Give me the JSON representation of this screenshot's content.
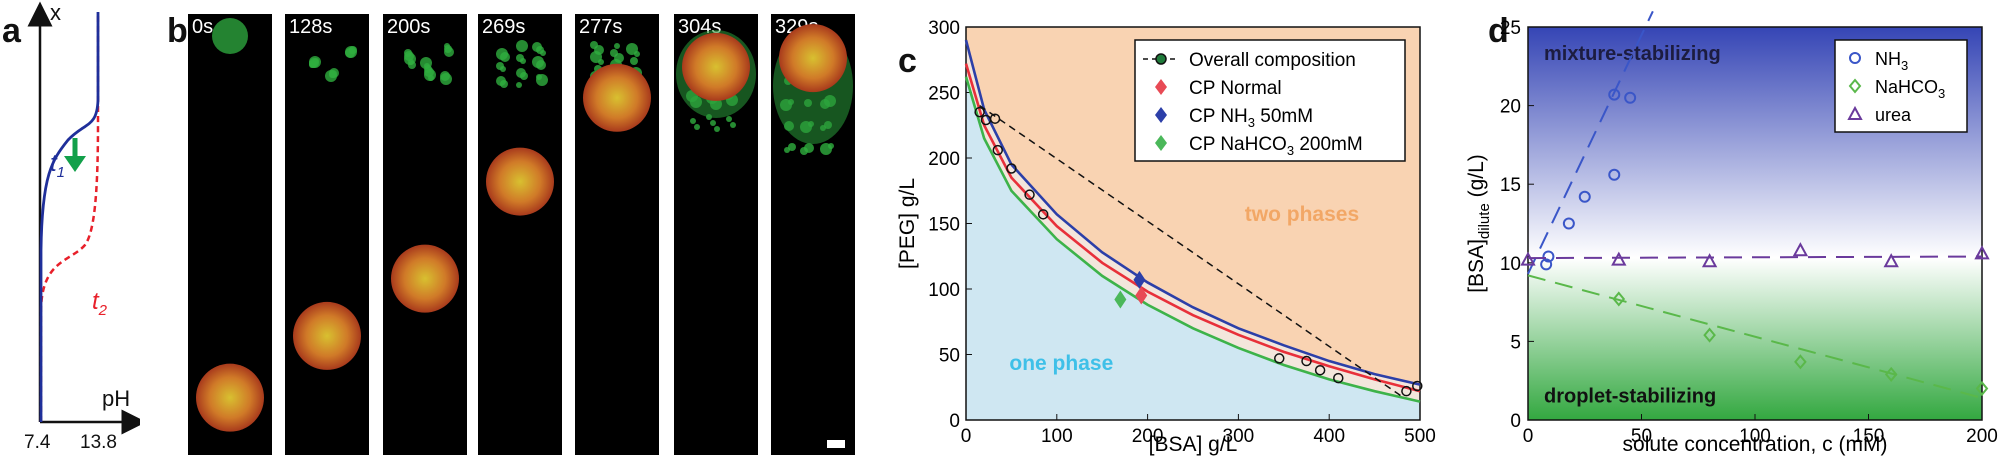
{
  "panels": {
    "a": "a",
    "b": "b",
    "c": "c",
    "d": "d"
  },
  "panel_a": {
    "y_axis_label": "x",
    "x_axis_label": "pH",
    "tick_left": "7.4",
    "tick_right": "13.8",
    "curve_labels": [
      "t",
      "t"
    ],
    "curve_subscripts": [
      "1",
      "2"
    ],
    "colors": {
      "t1": "#1f2f9a",
      "t2": "#e8202a",
      "arrow": "#12a04a"
    }
  },
  "panel_b": {
    "times": [
      "0s",
      "128s",
      "200s",
      "269s",
      "277s",
      "304s",
      "329s"
    ],
    "droplet_height_fraction": [
      0.87,
      0.73,
      0.6,
      0.38,
      0.19,
      0.12,
      0.1
    ]
  },
  "panel_c": {
    "chart_data": {
      "type": "line",
      "xlabel": "[BSA] g/L",
      "ylabel": "[PEG] g/L",
      "xlim": [
        0,
        500
      ],
      "ylim": [
        0,
        300
      ],
      "xticks": [
        0,
        100,
        200,
        300,
        400,
        500
      ],
      "yticks": [
        0,
        50,
        100,
        150,
        200,
        250,
        300
      ],
      "region_labels": {
        "upper": "two phases",
        "lower": "one phase"
      },
      "legend": [
        "Overall composition",
        "CP Normal",
        "CP NH",
        "CP NaHCO"
      ],
      "legend_sub": [
        "3",
        "3"
      ],
      "legend_suffix": [
        " 50mM",
        " 200mM"
      ],
      "binodal_curves": [
        {
          "name": "NH3 50mM",
          "color": "#2c3fa8",
          "x": [
            0,
            20,
            50,
            100,
            150,
            200,
            250,
            300,
            350,
            400,
            450,
            500
          ],
          "y": [
            290,
            237,
            195,
            157,
            128,
            105,
            86,
            70,
            57,
            45,
            35,
            27
          ]
        },
        {
          "name": "Normal",
          "color": "#e8303a",
          "x": [
            0,
            20,
            50,
            100,
            150,
            200,
            250,
            300,
            350,
            400,
            450,
            500
          ],
          "y": [
            272,
            225,
            185,
            148,
            120,
            98,
            80,
            65,
            52,
            41,
            31,
            22
          ]
        },
        {
          "name": "NaHCO3 200mM",
          "color": "#3db34a",
          "x": [
            0,
            20,
            50,
            100,
            150,
            200,
            250,
            300,
            350,
            400,
            450,
            500
          ],
          "y": [
            262,
            215,
            175,
            138,
            110,
            88,
            70,
            55,
            42,
            31,
            22,
            14
          ]
        }
      ],
      "overall_composition": {
        "x": [
          15,
          22,
          32,
          35,
          50,
          70,
          85,
          345,
          375,
          390,
          410,
          485,
          497
        ],
        "y": [
          235,
          229,
          230,
          206,
          192,
          172,
          157,
          47,
          45,
          38,
          32,
          22,
          26
        ]
      },
      "tie_line": {
        "x": [
          15,
          480
        ],
        "y": [
          240,
          18
        ]
      },
      "critical_points": [
        {
          "name": "CP Normal",
          "x": 193,
          "y": 95,
          "color": "#e84a55"
        },
        {
          "name": "CP NH3 50mM",
          "x": 191,
          "y": 107,
          "color": "#2c3fa8"
        },
        {
          "name": "CP NaHCO3 200mM",
          "x": 170,
          "y": 92,
          "color": "#4bb85a"
        }
      ]
    }
  },
  "panel_d": {
    "chart_data": {
      "type": "scatter",
      "xlabel": "solute concentration, c (mM)",
      "ylabel": "[BSA]",
      "ylabel_sub": "dilute",
      "ylabel_unit": " (g/L)",
      "xlim": [
        0,
        200
      ],
      "ylim": [
        0,
        25
      ],
      "xticks": [
        0,
        50,
        100,
        150,
        200
      ],
      "yticks": [
        0,
        5,
        10,
        15,
        20,
        25
      ],
      "region_labels": {
        "upper": "mixture-stabilizing",
        "lower": "droplet-stabilizing"
      },
      "legend": [
        "NH",
        "NaHCO",
        "urea"
      ],
      "legend_sub": [
        "3",
        "3",
        ""
      ],
      "series": [
        {
          "name": "NH3",
          "marker": "circle",
          "color": "#3a56c8",
          "x": [
            8,
            9,
            18,
            25,
            38,
            38,
            45
          ],
          "y": [
            9.9,
            10.4,
            12.5,
            14.2,
            15.6,
            20.7,
            20.5
          ],
          "fit": {
            "x": [
              0,
              55
            ],
            "y": [
              9.3,
              26
            ]
          }
        },
        {
          "name": "NaHCO3",
          "marker": "diamond",
          "color": "#5ab84a",
          "x": [
            40,
            80,
            120,
            160,
            200
          ],
          "y": [
            7.7,
            5.4,
            3.7,
            2.9,
            2.0
          ],
          "fit": {
            "x": [
              0,
              200
            ],
            "y": [
              9.2,
              1.4
            ]
          }
        },
        {
          "name": "urea",
          "marker": "triangle",
          "color": "#6a3a9c",
          "x": [
            0,
            40,
            80,
            120,
            160,
            200
          ],
          "y": [
            10.2,
            10.2,
            10.1,
            10.8,
            10.1,
            10.6
          ],
          "fit": {
            "x": [
              0,
              200
            ],
            "y": [
              10.3,
              10.4
            ]
          }
        }
      ]
    }
  }
}
